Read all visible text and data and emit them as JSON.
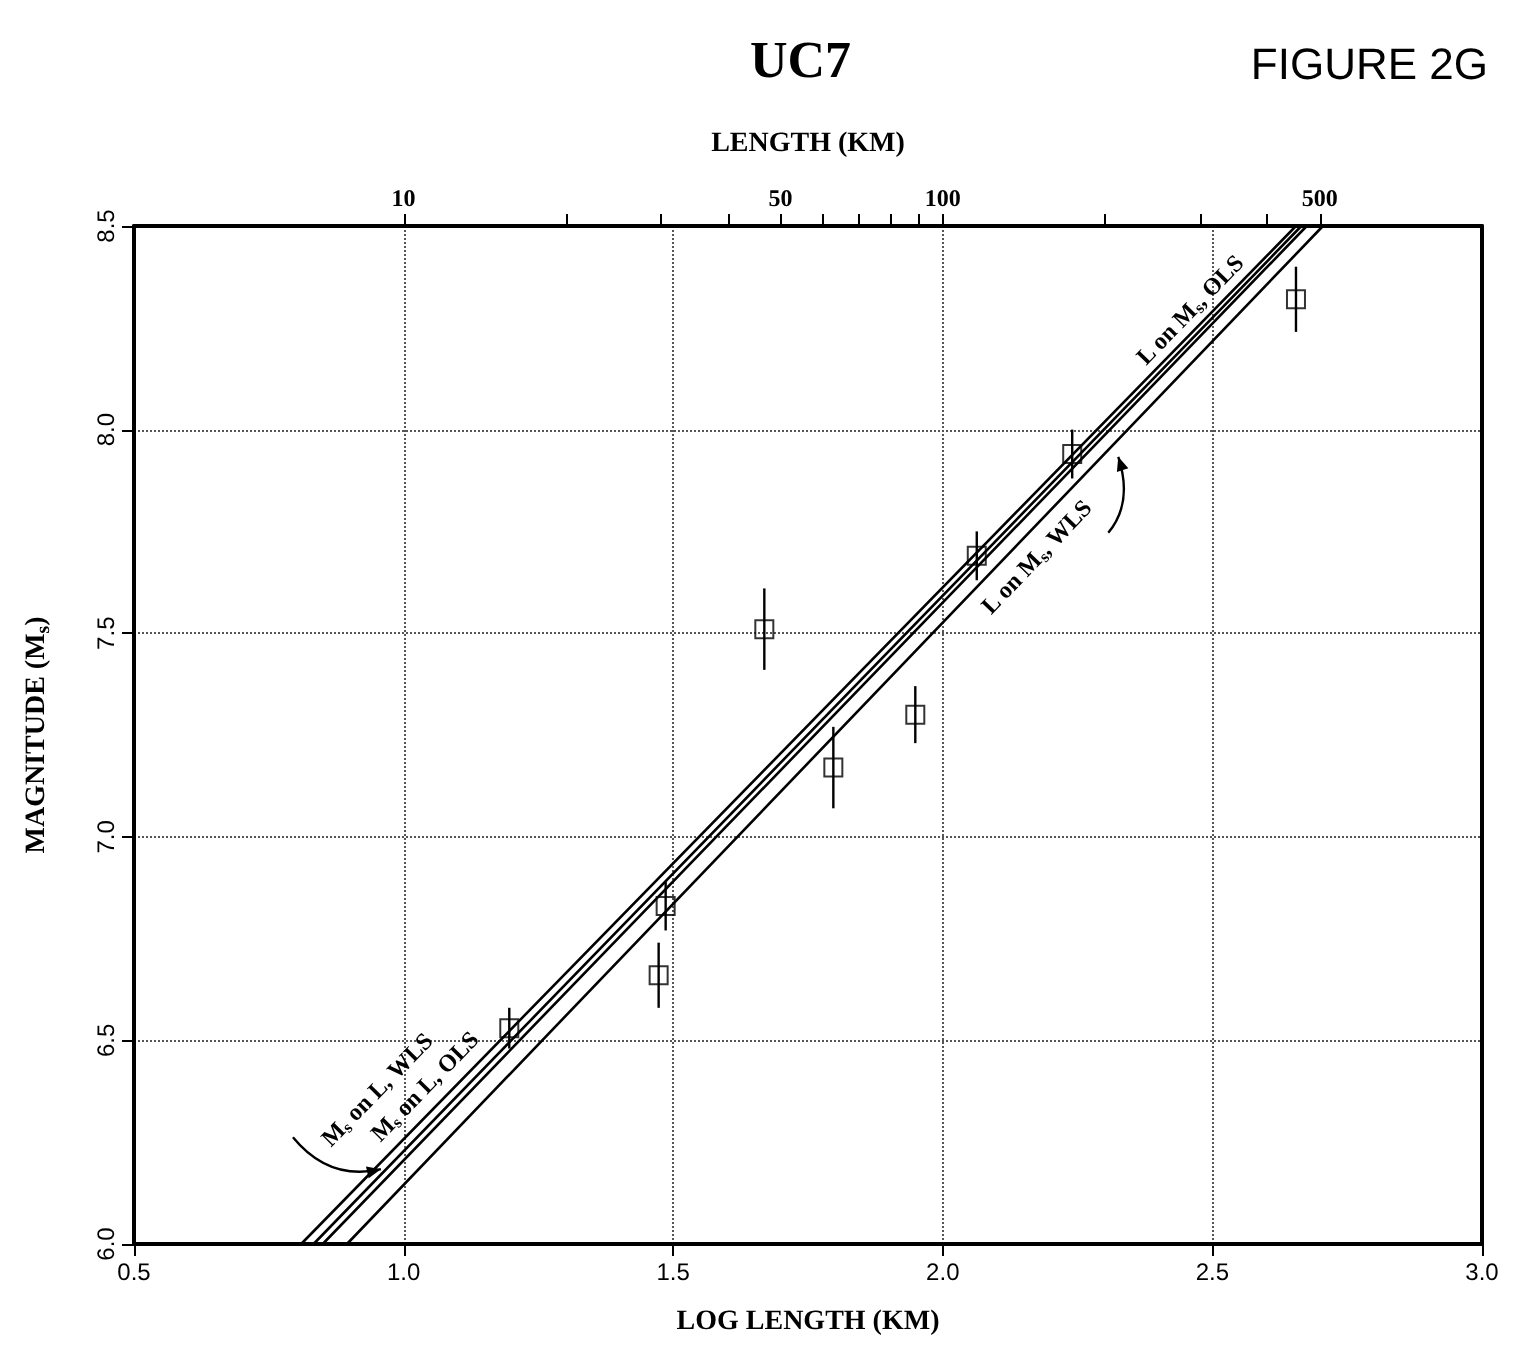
{
  "chart_data": {
    "type": "scatter",
    "title": "UC7",
    "subtitle": "FIGURE 2G",
    "xlabel": "LOG LENGTH (KM)",
    "ylabel": "MAGNITUDE (M$_{s}$)",
    "x2label": "LENGTH (KM)",
    "xlim": [
      0.5,
      3.0
    ],
    "ylim": [
      6.0,
      8.5
    ],
    "xticks": [
      {
        "value": 0.5,
        "label": "0.5"
      },
      {
        "value": 1.0,
        "label": "1.0"
      },
      {
        "value": 1.5,
        "label": "1.5"
      },
      {
        "value": 2.0,
        "label": "2.0"
      },
      {
        "value": 2.5,
        "label": "2.5"
      },
      {
        "value": 3.0,
        "label": "3.0"
      }
    ],
    "yticks": [
      {
        "value": 6.0,
        "label": "6.0"
      },
      {
        "value": 6.5,
        "label": "6.5"
      },
      {
        "value": 7.0,
        "label": "7.0"
      },
      {
        "value": 7.5,
        "label": "7.5"
      },
      {
        "value": 8.0,
        "label": "8.0"
      },
      {
        "value": 8.5,
        "label": "8.5"
      }
    ],
    "x2lim": [
      3.162,
      1000
    ],
    "log": "x2",
    "x2ticks": [
      10,
      {
        "value": 20,
        "label": null
      },
      {
        "value": 30,
        "label": null
      },
      {
        "value": 40,
        "label": null
      },
      50,
      {
        "value": 60,
        "label": null
      },
      {
        "value": 70,
        "label": null
      },
      {
        "value": 80,
        "label": null
      },
      {
        "value": 90,
        "label": null
      },
      100,
      {
        "value": 200,
        "label": null
      },
      {
        "value": 300,
        "label": null
      },
      {
        "value": 400,
        "label": null
      },
      500
    ],
    "grid": true,
    "legend": false,
    "series": [
      {
        "type": "scatter",
        "color": "#000000",
        "marker": "square",
        "x": [
          1.196,
          1.486,
          1.473,
          1.669,
          1.797,
          1.949,
          2.063,
          2.24,
          2.655
        ],
        "values": [
          6.53,
          6.83,
          6.66,
          7.51,
          7.17,
          7.3,
          7.69,
          7.94,
          8.32
        ],
        "errors": [
          0.05,
          0.06,
          0.08,
          0.1,
          0.1,
          0.07,
          0.06,
          0.06,
          0.08
        ]
      },
      {
        "type": "line",
        "color": "#000000",
        "line_style": "solid",
        "x": [
          0.81,
          2.655
        ],
        "values": [
          6.0,
          8.5
        ]
      },
      {
        "type": "line",
        "color": "#000000",
        "line_style": "solid",
        "x": [
          0.833,
          2.665
        ],
        "values": [
          6.0,
          8.5
        ]
      },
      {
        "type": "line",
        "color": "#000000",
        "line_style": "solid",
        "x": [
          0.85,
          2.675
        ],
        "values": [
          6.0,
          8.5
        ]
      },
      {
        "type": "line",
        "color": "#000000",
        "line_style": "solid",
        "x": [
          0.895,
          2.705
        ],
        "values": [
          6.0,
          8.5
        ]
      }
    ],
    "annotations": [
      "M$_{s}$ on L, WLS",
      "M$_{s}$ on L, OLS",
      "L on M$_{s}$, OLS",
      "L on M$_{s}$, WLS"
    ]
  }
}
